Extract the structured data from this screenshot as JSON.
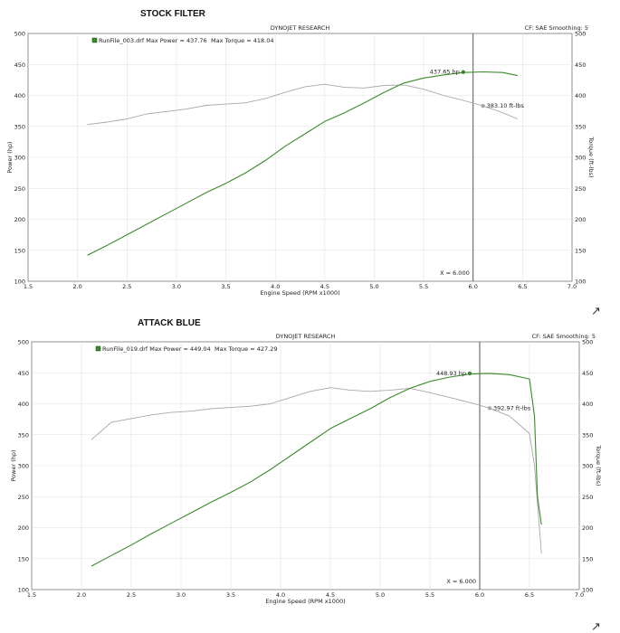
{
  "chart_data": [
    {
      "type": "line",
      "title": "STOCK FILTER",
      "header": "DYNOJET RESEARCH",
      "cf_text": "CF: SAE   Smoothing: 5",
      "legend_text": "RunFile_003.drf Max Power = 437.76",
      "max_torque_text": "Max Torque = 418.04",
      "xlabel": "Engine Speed (RPM x1000)",
      "ylabel_left": "Power (hp)",
      "ylabel_right": "Torque (ft-lbs)",
      "xlim": [
        1.5,
        7.0
      ],
      "ylim": [
        100,
        500
      ],
      "xticks": [
        1.5,
        2.0,
        2.5,
        3.0,
        3.5,
        4.0,
        4.5,
        5.0,
        5.5,
        6.0,
        6.5,
        7.0
      ],
      "yticks": [
        100,
        150,
        200,
        250,
        300,
        350,
        400,
        450,
        500
      ],
      "cursor_x": 6.0,
      "cursor_label": "X = 6.000",
      "power_label": "437.65 hp",
      "power_label_point": [
        5.9,
        437.65
      ],
      "torque_label": "383.10 ft-lbs",
      "torque_label_point": [
        6.1,
        383.1
      ],
      "series": [
        {
          "name": "Power",
          "color": "#3a8a2a",
          "x": [
            2.1,
            2.3,
            2.5,
            2.7,
            2.9,
            3.1,
            3.3,
            3.5,
            3.7,
            3.9,
            4.1,
            4.3,
            4.5,
            4.7,
            4.9,
            5.1,
            5.3,
            5.5,
            5.7,
            5.9,
            6.1,
            6.3,
            6.45
          ],
          "y": [
            142,
            158,
            175,
            192,
            209,
            226,
            243,
            258,
            275,
            295,
            318,
            338,
            358,
            372,
            388,
            405,
            420,
            428,
            433,
            437,
            438,
            437,
            432
          ]
        },
        {
          "name": "Torque",
          "color": "#a8a8a8",
          "x": [
            2.1,
            2.3,
            2.5,
            2.7,
            2.9,
            3.1,
            3.3,
            3.5,
            3.7,
            3.9,
            4.1,
            4.3,
            4.5,
            4.7,
            4.9,
            5.1,
            5.3,
            5.5,
            5.7,
            5.9,
            6.1,
            6.3,
            6.45
          ],
          "y": [
            353,
            357,
            362,
            370,
            374,
            378,
            384,
            386,
            388,
            395,
            405,
            414,
            418,
            413,
            412,
            416,
            417,
            410,
            400,
            392,
            383,
            372,
            362
          ]
        }
      ]
    },
    {
      "type": "line",
      "title": "ATTACK BLUE",
      "header": "DYNOJET RESEARCH",
      "cf_text": "CF: SAE   Smoothing: 5",
      "legend_text": "RunFile_019.drf Max Power = 449.04",
      "max_torque_text": "Max Torque = 427.29",
      "xlabel": "Engine Speed (RPM x1000)",
      "ylabel_left": "Power (hp)",
      "ylabel_right": "Torque (ft-lbs)",
      "xlim": [
        1.5,
        7.0
      ],
      "ylim": [
        100,
        500
      ],
      "xticks": [
        1.5,
        2.0,
        2.5,
        3.0,
        3.5,
        4.0,
        4.5,
        5.0,
        5.5,
        6.0,
        6.5,
        7.0
      ],
      "yticks": [
        100,
        150,
        200,
        250,
        300,
        350,
        400,
        450,
        500
      ],
      "cursor_x": 6.0,
      "cursor_label": "X = 6.000",
      "power_label": "448.93 hp",
      "power_label_point": [
        5.9,
        448.93
      ],
      "torque_label": "392.97 ft-lbs",
      "torque_label_point": [
        6.1,
        392.97
      ],
      "series": [
        {
          "name": "Power",
          "color": "#3a8a2a",
          "x": [
            2.1,
            2.3,
            2.5,
            2.7,
            2.9,
            3.1,
            3.3,
            3.5,
            3.7,
            3.9,
            4.1,
            4.3,
            4.5,
            4.7,
            4.9,
            5.1,
            5.3,
            5.5,
            5.7,
            5.9,
            6.1,
            6.3,
            6.5,
            6.55,
            6.58,
            6.62
          ],
          "y": [
            138,
            155,
            172,
            190,
            207,
            224,
            241,
            257,
            274,
            294,
            316,
            338,
            360,
            376,
            392,
            410,
            425,
            436,
            443,
            448,
            449,
            447,
            440,
            380,
            250,
            205
          ]
        },
        {
          "name": "Torque",
          "color": "#a8a8a8",
          "x": [
            2.1,
            2.3,
            2.5,
            2.7,
            2.9,
            3.1,
            3.3,
            3.5,
            3.7,
            3.9,
            4.1,
            4.3,
            4.5,
            4.7,
            4.9,
            5.1,
            5.3,
            5.5,
            5.7,
            5.9,
            6.1,
            6.3,
            6.5,
            6.55,
            6.6,
            6.62
          ],
          "y": [
            342,
            370,
            376,
            382,
            386,
            388,
            392,
            394,
            396,
            400,
            410,
            420,
            426,
            422,
            420,
            422,
            425,
            418,
            410,
            402,
            393,
            380,
            352,
            300,
            200,
            158
          ]
        }
      ]
    }
  ]
}
